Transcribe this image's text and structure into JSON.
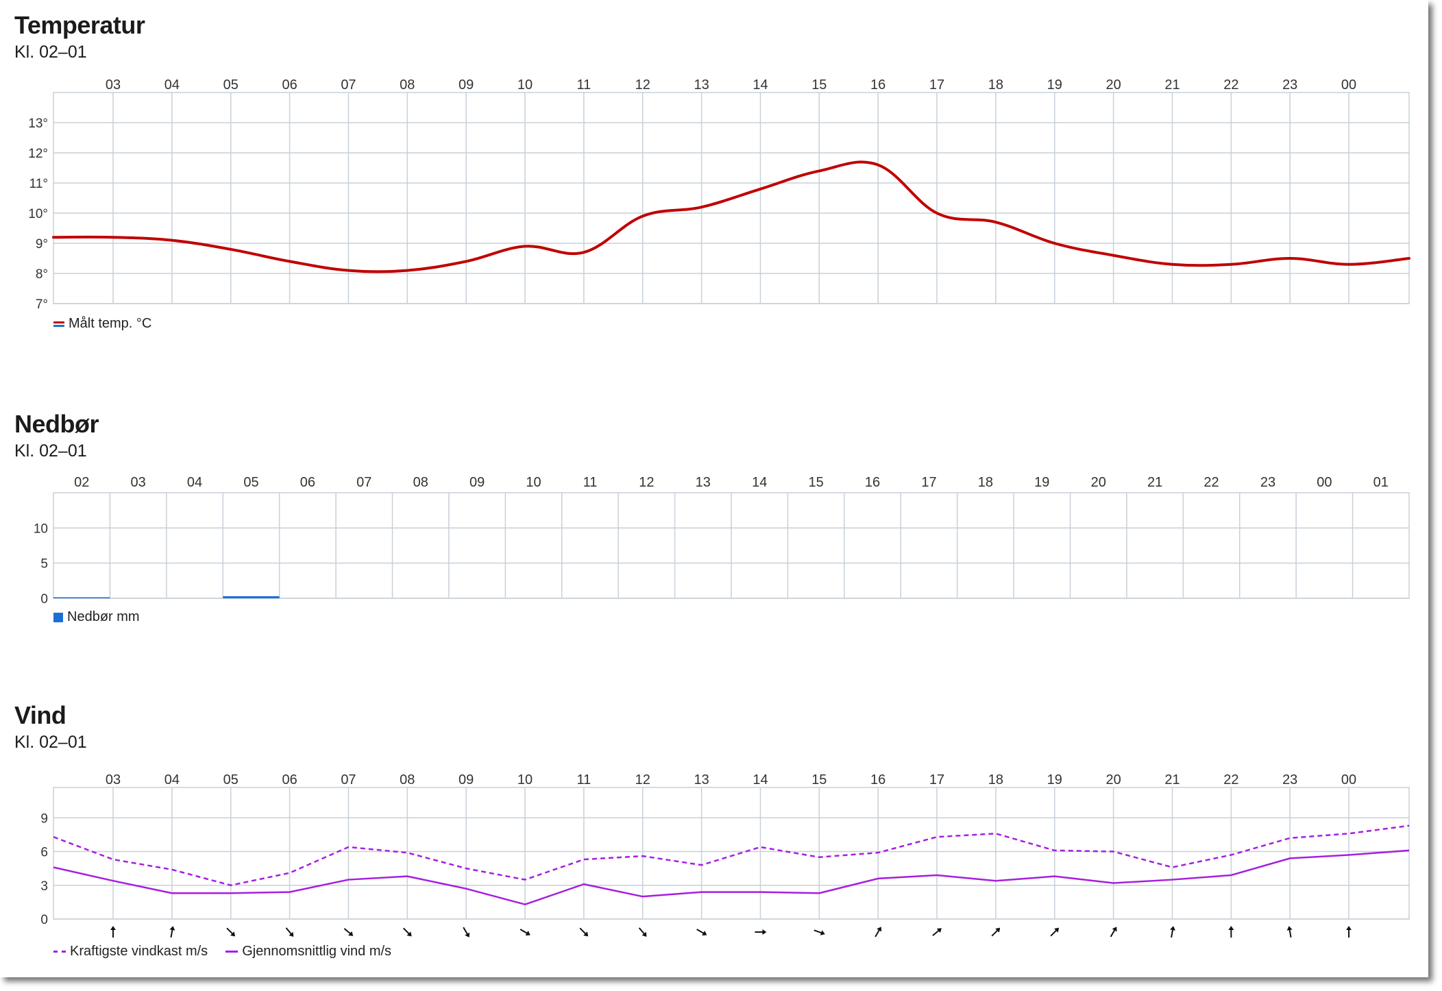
{
  "temperature": {
    "title": "Temperatur",
    "subtitle": "Kl. 02–01",
    "legend_label": "Målt temp. °C",
    "chart_data": {
      "type": "line",
      "x": [
        "02:10",
        "03",
        "04",
        "05",
        "06",
        "07",
        "08",
        "09",
        "10",
        "11",
        "12",
        "13",
        "14",
        "15",
        "16",
        "17",
        "18",
        "19",
        "20",
        "21",
        "22",
        "23",
        "00",
        "00:50"
      ],
      "hour_labels": [
        "03",
        "04",
        "05",
        "06",
        "07",
        "08",
        "09",
        "10",
        "11",
        "12",
        "13",
        "14",
        "15",
        "16",
        "17",
        "18",
        "19",
        "20",
        "21",
        "22",
        "23",
        "00"
      ],
      "series": [
        {
          "name": "Målt temp. °C",
          "color": "#c00000",
          "values": [
            9.2,
            9.2,
            9.1,
            8.8,
            8.4,
            8.1,
            8.1,
            8.4,
            8.9,
            8.7,
            9.9,
            10.2,
            10.8,
            11.4,
            11.6,
            10.0,
            9.7,
            9.0,
            8.6,
            8.3,
            8.3,
            8.5,
            8.3,
            8.5
          ]
        }
      ],
      "ylim": [
        7,
        14
      ],
      "yticks": [
        7,
        8,
        9,
        10,
        11,
        12,
        13
      ],
      "ytick_labels": [
        "7°",
        "8°",
        "9°",
        "10°",
        "11°",
        "12°",
        "13°"
      ],
      "grid": true,
      "legend_position": "bottom-left"
    }
  },
  "precipitation": {
    "title": "Nedbør",
    "subtitle": "Kl. 02–01",
    "legend_label": "Nedbør mm",
    "chart_data": {
      "type": "bar",
      "categories": [
        "02",
        "03",
        "04",
        "05",
        "06",
        "07",
        "08",
        "09",
        "10",
        "11",
        "12",
        "13",
        "14",
        "15",
        "16",
        "17",
        "18",
        "19",
        "20",
        "21",
        "22",
        "23",
        "00",
        "01"
      ],
      "series": [
        {
          "name": "Nedbør mm",
          "color": "#1a6fd6",
          "values": [
            0.1,
            0,
            0,
            0.3,
            0,
            0,
            0,
            0,
            0,
            0,
            0,
            0,
            0,
            0,
            0,
            0,
            0,
            0,
            0,
            0,
            0,
            0,
            0,
            0
          ]
        }
      ],
      "ylim": [
        0,
        15
      ],
      "yticks": [
        0,
        5,
        10
      ],
      "ytick_labels": [
        "0",
        "5",
        "10"
      ],
      "grid": true,
      "legend_position": "bottom-left"
    }
  },
  "wind": {
    "title": "Vind",
    "subtitle": "Kl. 02–01",
    "legend_gust": "Kraftigste vindkast m/s",
    "legend_mean": "Gjennomsnittlig vind m/s",
    "chart_data": {
      "type": "line",
      "x": [
        "02:10",
        "03",
        "04",
        "05",
        "06",
        "07",
        "08",
        "09",
        "10",
        "11",
        "12",
        "13",
        "14",
        "15",
        "16",
        "17",
        "18",
        "19",
        "20",
        "21",
        "22",
        "23",
        "00",
        "00:50"
      ],
      "hour_labels": [
        "03",
        "04",
        "05",
        "06",
        "07",
        "08",
        "09",
        "10",
        "11",
        "12",
        "13",
        "14",
        "15",
        "16",
        "17",
        "18",
        "19",
        "20",
        "21",
        "22",
        "23",
        "00"
      ],
      "series": [
        {
          "name": "Kraftigste vindkast m/s",
          "color": "#a61ee0",
          "style": "dashed",
          "values": [
            7.3,
            5.3,
            4.4,
            3.0,
            4.1,
            6.4,
            5.9,
            4.5,
            3.5,
            5.3,
            5.6,
            4.8,
            6.4,
            5.5,
            5.9,
            7.3,
            7.6,
            6.1,
            6.0,
            4.6,
            5.7,
            7.2,
            7.6,
            8.3
          ]
        },
        {
          "name": "Gjennomsnittlig vind m/s",
          "color": "#a61ee0",
          "style": "solid",
          "values": [
            4.6,
            3.4,
            2.3,
            2.3,
            2.4,
            3.5,
            3.8,
            2.7,
            1.3,
            3.1,
            2.0,
            2.4,
            2.4,
            2.3,
            3.6,
            3.9,
            3.4,
            3.8,
            3.2,
            3.5,
            3.9,
            5.4,
            5.7,
            6.1
          ]
        }
      ],
      "direction_arrows_deg": [
        0,
        10,
        135,
        140,
        130,
        135,
        150,
        120,
        135,
        140,
        120,
        90,
        110,
        30,
        50,
        45,
        45,
        30,
        10,
        0,
        350,
        0
      ],
      "ylim": [
        0,
        11.7
      ],
      "yticks": [
        0,
        3,
        6,
        9
      ],
      "ytick_labels": [
        "0",
        "3",
        "6",
        "9"
      ],
      "grid": true,
      "legend_position": "bottom-left"
    }
  }
}
